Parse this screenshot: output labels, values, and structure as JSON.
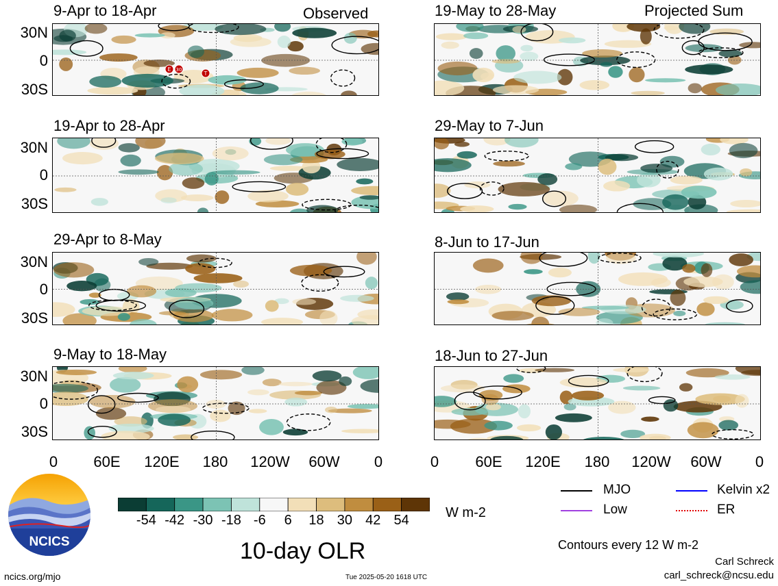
{
  "header": {
    "observed_label": "Observed",
    "projected_label": "Projected Sum"
  },
  "panels_left": [
    {
      "title": "9-Apr to 18-Apr"
    },
    {
      "title": "19-Apr to 28-Apr"
    },
    {
      "title": "29-Apr to 8-May"
    },
    {
      "title": "9-May to 18-May"
    }
  ],
  "panels_right": [
    {
      "title": "19-May to 28-May"
    },
    {
      "title": "29-May to 7-Jun"
    },
    {
      "title": "8-Jun to 17-Jun"
    },
    {
      "title": "18-Jun to 27-Jun"
    }
  ],
  "lat_labels": [
    "30N",
    "0",
    "30S"
  ],
  "lon_labels": [
    "0",
    "60E",
    "120E",
    "180",
    "120W",
    "60W",
    "0"
  ],
  "colorbar": {
    "colors": [
      "#0b3d34",
      "#15665a",
      "#3a9686",
      "#7cc3b4",
      "#bfe3da",
      "#f7f7f7",
      "#f2dfb8",
      "#ddbd7d",
      "#c08d3f",
      "#9a6017",
      "#5e3506"
    ],
    "labels": [
      "-54",
      "-42",
      "-30",
      "-18",
      "-6",
      "6",
      "18",
      "30",
      "42",
      "54"
    ],
    "units": "W m-2"
  },
  "title": "10-day OLR",
  "legend": [
    {
      "label": "MJO",
      "color": "#000000"
    },
    {
      "label": "Kelvin x2",
      "color": "#0000ff"
    },
    {
      "label": "Low",
      "color": "#a040e0"
    },
    {
      "label": "ER",
      "color": "#e00000"
    }
  ],
  "contour_note": "Contours every 12 W m-2",
  "credits": {
    "author": "Carl Schreck",
    "email": "carl_schreck@ncsu.edu",
    "site": "ncics.org/mjo",
    "timestamp": "Tue 2025-05-20 1618 UTC",
    "logo_text": "NCICS"
  },
  "tc_markers": [
    "E",
    "30",
    "T"
  ],
  "chart_data": {
    "type": "heatmap",
    "variable": "10-day OLR anomaly",
    "units": "W m-2",
    "x_ticks": [
      "0",
      "60E",
      "120E",
      "180",
      "120W",
      "60W",
      "0"
    ],
    "y_ticks": [
      "30N",
      "0",
      "30S"
    ],
    "color_levels": [
      -54,
      -42,
      -30,
      -18,
      -6,
      6,
      18,
      30,
      42,
      54
    ],
    "observed_periods": [
      "9-Apr to 18-Apr",
      "19-Apr to 28-Apr",
      "29-Apr to 8-May",
      "9-May to 18-May"
    ],
    "projected_periods": [
      "19-May to 28-May",
      "29-May to 7-Jun",
      "8-Jun to 17-Jun",
      "18-Jun to 27-Jun"
    ],
    "contour_interval": 12
  }
}
